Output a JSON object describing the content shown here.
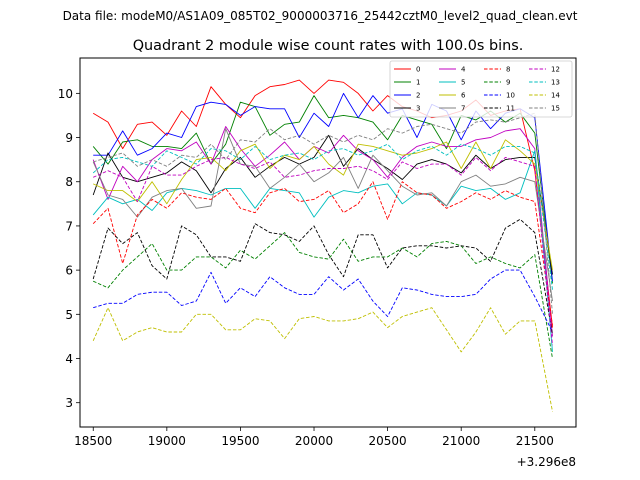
{
  "figure": {
    "suptitle": "Data file: modeM0/AS1A09_085T02_9000003716_25442cztM0_level2_quad_clean.evt",
    "x_offset_label": "+3.296e8"
  },
  "chart_data": {
    "type": "line",
    "title": "Quadrant 2 module wise count rates with 100.0s bins.",
    "xlabel": "",
    "ylabel": "",
    "xlim": [
      18410,
      21780
    ],
    "ylim": [
      2.45,
      10.8
    ],
    "x_ticks": [
      18500,
      19000,
      19500,
      20000,
      20500,
      21000,
      21500
    ],
    "x_tick_labels": [
      "18500",
      "19000",
      "19500",
      "20000",
      "20500",
      "21000",
      "21500"
    ],
    "y_ticks": [
      3,
      4,
      5,
      6,
      7,
      8,
      9,
      10
    ],
    "y_tick_labels": [
      "3",
      "4",
      "5",
      "6",
      "7",
      "8",
      "9",
      "10"
    ],
    "x_offset": 329600000,
    "grid": false,
    "legend_position": "top-right",
    "x": [
      18500,
      18600,
      18700,
      18800,
      18900,
      19000,
      19100,
      19200,
      19300,
      19400,
      19500,
      19600,
      19700,
      19800,
      19900,
      20000,
      20100,
      20200,
      20300,
      20400,
      20500,
      20600,
      20700,
      20800,
      20900,
      21000,
      21100,
      21200,
      21300,
      21400,
      21500,
      21620
    ],
    "series": [
      {
        "name": "0",
        "color": "#ff0000",
        "dash": "solid",
        "values": [
          9.55,
          9.35,
          8.75,
          9.3,
          9.35,
          9.05,
          9.6,
          9.25,
          10.15,
          9.75,
          9.45,
          9.95,
          10.15,
          10.2,
          10.3,
          10.0,
          10.3,
          10.25,
          10.0,
          9.6,
          9.95,
          9.7,
          9.6,
          9.45,
          9.5,
          9.6,
          9.85,
          9.5,
          9.6,
          9.65,
          8.25,
          4.7
        ]
      },
      {
        "name": "1",
        "color": "#008000",
        "dash": "solid",
        "values": [
          8.8,
          8.4,
          8.9,
          8.95,
          8.8,
          8.8,
          8.75,
          9.1,
          8.4,
          8.85,
          9.8,
          9.7,
          9.05,
          9.3,
          9.35,
          9.95,
          9.45,
          9.5,
          9.45,
          9.35,
          8.95,
          9.5,
          9.4,
          9.3,
          8.75,
          9.5,
          9.4,
          9.6,
          9.35,
          9.55,
          9.1,
          5.7
        ]
      },
      {
        "name": "2",
        "color": "#0000ff",
        "dash": "solid",
        "values": [
          8.6,
          8.6,
          9.15,
          8.6,
          8.75,
          9.1,
          9.0,
          9.7,
          9.8,
          9.75,
          9.5,
          9.7,
          9.65,
          9.65,
          9.0,
          9.55,
          9.25,
          10.0,
          9.45,
          9.95,
          9.55,
          9.65,
          9.0,
          9.75,
          9.6,
          8.95,
          9.6,
          9.2,
          9.55,
          9.65,
          9.45,
          5.75
        ]
      },
      {
        "name": "3",
        "color": "#000000",
        "dash": "solid",
        "values": [
          7.7,
          8.65,
          8.1,
          8.0,
          8.1,
          8.2,
          8.45,
          8.25,
          7.75,
          8.3,
          8.55,
          8.1,
          8.35,
          8.55,
          8.4,
          8.55,
          9.05,
          8.35,
          8.75,
          8.5,
          8.3,
          8.05,
          8.4,
          8.5,
          8.4,
          8.2,
          8.6,
          8.3,
          8.5,
          8.55,
          8.55,
          5.9
        ]
      },
      {
        "name": "4",
        "color": "#c000c0",
        "dash": "solid",
        "values": [
          8.5,
          7.6,
          8.35,
          8.0,
          8.5,
          8.75,
          8.7,
          8.9,
          8.4,
          9.25,
          8.75,
          8.35,
          8.6,
          8.9,
          8.5,
          8.8,
          8.65,
          9.05,
          8.7,
          8.5,
          8.1,
          8.55,
          8.8,
          8.9,
          8.8,
          8.8,
          8.95,
          9.0,
          9.15,
          9.2,
          8.75,
          4.5
        ]
      },
      {
        "name": "5",
        "color": "#00bfbf",
        "dash": "solid",
        "values": [
          7.25,
          7.65,
          7.5,
          7.6,
          7.35,
          7.75,
          7.85,
          7.8,
          7.7,
          7.85,
          7.85,
          7.4,
          7.85,
          7.8,
          7.75,
          7.2,
          7.65,
          7.8,
          7.75,
          7.9,
          7.95,
          7.5,
          7.75,
          7.7,
          7.45,
          7.9,
          7.8,
          7.85,
          7.6,
          7.75,
          8.7,
          4.15
        ]
      },
      {
        "name": "6",
        "color": "#bfbf00",
        "dash": "solid",
        "values": [
          7.95,
          7.8,
          7.8,
          7.55,
          8.0,
          7.5,
          8.05,
          8.5,
          8.55,
          8.25,
          8.7,
          8.85,
          8.3,
          8.6,
          8.5,
          8.8,
          8.4,
          8.15,
          8.85,
          8.8,
          8.7,
          8.6,
          8.65,
          8.75,
          8.9,
          8.3,
          8.9,
          8.3,
          8.95,
          8.7,
          8.4,
          6.0
        ]
      },
      {
        "name": "7",
        "color": "#808080",
        "dash": "solid",
        "values": [
          8.45,
          7.7,
          7.6,
          7.2,
          7.65,
          7.8,
          7.85,
          7.4,
          7.45,
          9.2,
          8.4,
          8.35,
          7.85,
          8.1,
          8.4,
          8.0,
          8.2,
          8.55,
          7.85,
          8.6,
          8.25,
          7.9,
          7.7,
          7.75,
          7.45,
          8.0,
          8.15,
          7.9,
          7.95,
          8.1,
          8.0,
          5.3
        ]
      },
      {
        "name": "8",
        "color": "#ff0000",
        "dash": "dashed",
        "values": [
          7.05,
          7.4,
          6.15,
          7.25,
          7.6,
          7.4,
          7.75,
          7.65,
          7.6,
          7.85,
          7.4,
          7.3,
          7.75,
          7.85,
          7.55,
          7.6,
          7.8,
          7.3,
          7.5,
          8.0,
          7.15,
          8.0,
          7.75,
          7.7,
          7.4,
          7.55,
          7.75,
          7.6,
          7.8,
          7.65,
          7.55,
          4.75
        ]
      },
      {
        "name": "9",
        "color": "#008000",
        "dash": "dashed",
        "values": [
          5.75,
          5.6,
          6.0,
          6.3,
          6.6,
          6.0,
          6.0,
          6.3,
          6.3,
          6.05,
          6.45,
          6.25,
          6.55,
          6.85,
          6.4,
          6.3,
          6.25,
          6.7,
          6.2,
          6.3,
          6.3,
          6.5,
          6.3,
          6.6,
          6.65,
          6.55,
          6.15,
          6.3,
          6.15,
          6.05,
          6.35,
          4.0
        ]
      },
      {
        "name": "10",
        "color": "#0000ff",
        "dash": "dashed",
        "values": [
          5.15,
          5.25,
          5.25,
          5.45,
          5.5,
          5.5,
          5.2,
          5.3,
          5.95,
          5.25,
          5.6,
          5.4,
          5.85,
          5.6,
          5.45,
          5.45,
          5.85,
          5.55,
          5.8,
          5.3,
          4.95,
          5.6,
          5.55,
          5.45,
          5.4,
          5.4,
          5.45,
          5.8,
          6.0,
          6.0,
          5.4,
          4.6
        ]
      },
      {
        "name": "11",
        "color": "#000000",
        "dash": "dashed",
        "values": [
          5.8,
          6.95,
          6.6,
          6.85,
          6.1,
          5.8,
          7.0,
          6.8,
          6.3,
          6.3,
          6.2,
          7.05,
          6.85,
          6.8,
          6.65,
          7.0,
          6.35,
          5.85,
          6.8,
          6.8,
          6.05,
          6.5,
          6.55,
          6.55,
          6.5,
          6.55,
          6.5,
          6.2,
          6.95,
          7.15,
          6.85,
          4.55
        ]
      },
      {
        "name": "12",
        "color": "#c000c0",
        "dash": "dashed",
        "values": [
          8.1,
          8.25,
          8.1,
          7.55,
          8.35,
          8.15,
          8.15,
          8.35,
          8.5,
          8.55,
          8.4,
          8.3,
          8.45,
          8.1,
          8.15,
          8.25,
          8.3,
          8.3,
          8.35,
          8.25,
          8.05,
          8.45,
          8.3,
          8.4,
          8.4,
          8.15,
          8.55,
          8.25,
          8.55,
          8.45,
          8.35,
          4.3
        ]
      },
      {
        "name": "13",
        "color": "#00bfbf",
        "dash": "dashed",
        "values": [
          8.2,
          8.5,
          8.55,
          8.45,
          8.35,
          8.7,
          8.55,
          8.4,
          8.75,
          8.7,
          8.5,
          8.8,
          8.5,
          8.6,
          8.65,
          8.5,
          8.7,
          8.75,
          8.6,
          8.7,
          8.85,
          8.5,
          8.7,
          8.8,
          8.6,
          8.85,
          8.75,
          8.6,
          8.8,
          8.8,
          8.65,
          5.55
        ]
      },
      {
        "name": "14",
        "color": "#bfbf00",
        "dash": "dashed",
        "values": [
          4.4,
          5.15,
          4.4,
          4.6,
          4.7,
          4.6,
          4.6,
          5.0,
          5.0,
          4.65,
          4.65,
          4.9,
          4.85,
          4.45,
          4.9,
          4.95,
          4.85,
          4.85,
          4.9,
          5.05,
          4.7,
          4.95,
          5.05,
          5.15,
          4.65,
          4.15,
          4.6,
          5.15,
          4.55,
          4.85,
          4.85,
          2.8
        ]
      },
      {
        "name": "15",
        "color": "#808080",
        "dash": "dashed",
        "values": [
          8.45,
          8.55,
          8.65,
          8.35,
          8.5,
          8.35,
          8.6,
          8.55,
          8.85,
          8.5,
          8.95,
          8.9,
          9.2,
          8.95,
          9.05,
          8.85,
          9.05,
          8.9,
          9.05,
          8.95,
          9.2,
          9.1,
          9.25,
          9.3,
          9.2,
          9.1,
          9.35,
          9.4,
          9.35,
          9.45,
          9.55,
          5.0
        ]
      }
    ]
  }
}
